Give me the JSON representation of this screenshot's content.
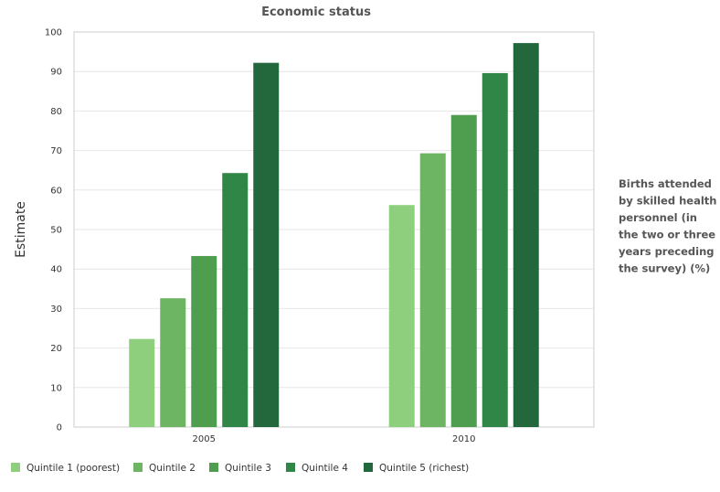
{
  "chart_data": {
    "type": "bar",
    "title": "Economic status",
    "xlabel": "",
    "ylabel": "Estimate",
    "categories": [
      "2005",
      "2010"
    ],
    "ylim": [
      0,
      100
    ],
    "yticks": [
      0,
      10,
      20,
      30,
      40,
      50,
      60,
      70,
      80,
      90,
      100
    ],
    "grid": true,
    "legend_position": "bottom",
    "indicator_label": [
      "Births attended",
      "by skilled health",
      "personnel (in",
      "the two or three",
      "years preceding",
      "the survey) (%)"
    ],
    "series": [
      {
        "name": "Quintile 1 (poorest)",
        "values": [
          22.3,
          56.2
        ],
        "color": "#8ecf7e"
      },
      {
        "name": "Quintile 2",
        "values": [
          32.6,
          69.3
        ],
        "color": "#6db562"
      },
      {
        "name": "Quintile 3",
        "values": [
          43.3,
          79.0
        ],
        "color": "#4f9e4f"
      },
      {
        "name": "Quintile 4",
        "values": [
          64.3,
          89.6
        ],
        "color": "#2f8646"
      },
      {
        "name": "Quintile 5 (richest)",
        "values": [
          92.2,
          97.2
        ],
        "color": "#23683d"
      }
    ]
  }
}
